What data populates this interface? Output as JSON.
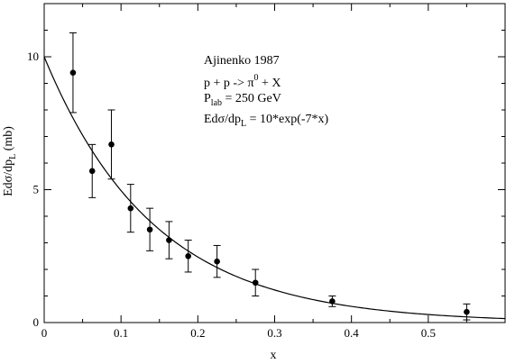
{
  "chart_data": {
    "type": "scatter",
    "xlabel": "x",
    "ylabel_main": "Edσ/dp",
    "ylabel_sub": "L",
    "ylabel_unit": " (mb)",
    "xlim": [
      0,
      0.6
    ],
    "ylim": [
      0,
      12
    ],
    "x_ticks": [
      {
        "value": 0,
        "label": "0"
      },
      {
        "value": 0.1,
        "label": "0.1"
      },
      {
        "value": 0.2,
        "label": "0.2"
      },
      {
        "value": 0.3,
        "label": "0.3"
      },
      {
        "value": 0.4,
        "label": "0.4"
      },
      {
        "value": 0.5,
        "label": "0.5"
      }
    ],
    "x_minor_step": 0.05,
    "y_ticks": [
      {
        "value": 0,
        "label": "0"
      },
      {
        "value": 5,
        "label": "5"
      },
      {
        "value": 10,
        "label": "10"
      }
    ],
    "y_minor_step": 1,
    "annotation": {
      "line1": "Ajinenko 1987",
      "line2_pre": "p + p -> π",
      "line2_sup": "0",
      "line2_post": " + X",
      "line3_pre": "P",
      "line3_sub": "lab",
      "line3_post": " = 250 GeV",
      "line4_pre": "Edσ/dp",
      "line4_sub": "L",
      "line4_post": " = 10*exp(-7*x)"
    },
    "points": [
      {
        "x": 0.0375,
        "y": 9.4,
        "err": 1.5
      },
      {
        "x": 0.0625,
        "y": 5.7,
        "err": 1.0
      },
      {
        "x": 0.0875,
        "y": 6.7,
        "err": 1.3
      },
      {
        "x": 0.1125,
        "y": 4.3,
        "err": 0.9
      },
      {
        "x": 0.1375,
        "y": 3.5,
        "err": 0.8
      },
      {
        "x": 0.1625,
        "y": 3.1,
        "err": 0.7
      },
      {
        "x": 0.1875,
        "y": 2.5,
        "err": 0.6
      },
      {
        "x": 0.225,
        "y": 2.3,
        "err": 0.6
      },
      {
        "x": 0.275,
        "y": 1.5,
        "err": 0.5
      },
      {
        "x": 0.375,
        "y": 0.8,
        "err": 0.2
      },
      {
        "x": 0.55,
        "y": 0.4,
        "err": 0.3
      }
    ],
    "fit": {
      "amplitude": 10,
      "slope": -7
    }
  }
}
